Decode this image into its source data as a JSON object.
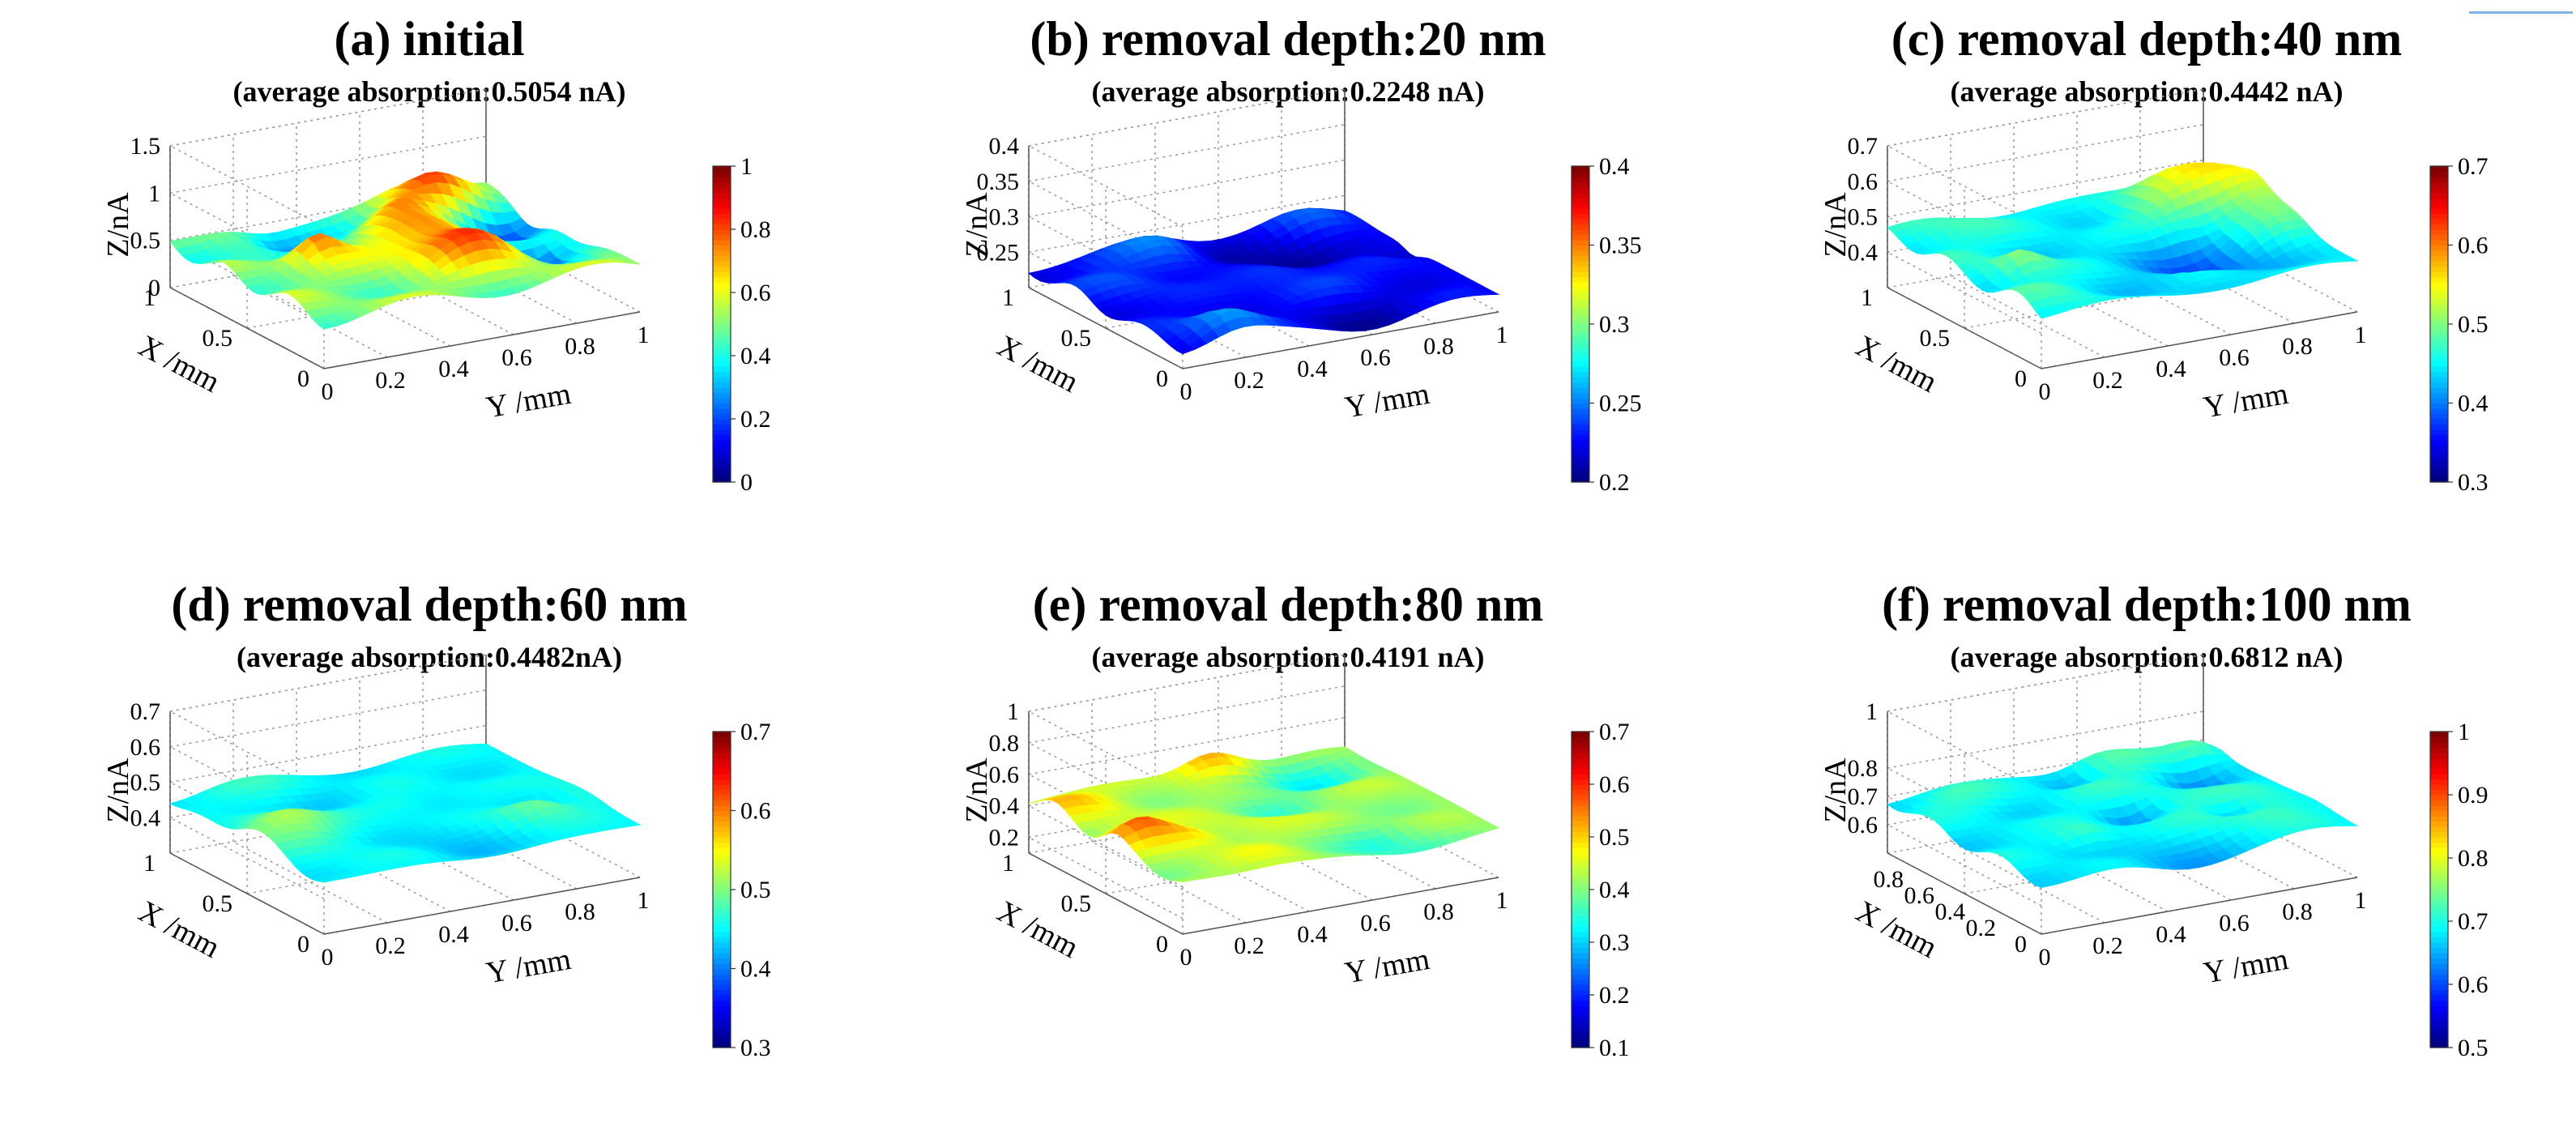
{
  "figure": {
    "accent_color": "#7fb2e6"
  },
  "chart_data": [
    {
      "type": "surface3d",
      "id": "a",
      "title": "(a) initial",
      "subtitle": "(average absorption:0.5054 nA)",
      "xlabel": "X /mm",
      "ylabel": "Y /mm",
      "zlabel": "Z/nA",
      "x_ticks": [
        "0",
        "0.5",
        "1"
      ],
      "y_ticks": [
        "0",
        "0.2",
        "0.4",
        "0.6",
        "0.8",
        "1"
      ],
      "z_ticks": [
        "0",
        "0.5",
        "1",
        "1.5"
      ],
      "zlim": [
        0,
        1.5
      ],
      "colorbar_ticks": [
        "0",
        "0.2",
        "0.4",
        "0.6",
        "0.8",
        "1"
      ],
      "clim": [
        0,
        1
      ],
      "mean": 0.5054,
      "amplitude": 0.35,
      "seed": 11
    },
    {
      "type": "surface3d",
      "id": "b",
      "title": "(b) removal depth:20 nm",
      "subtitle": "(average absorption:0.2248 nA)",
      "xlabel": "X /mm",
      "ylabel": "Y /mm",
      "zlabel": "Z/nA",
      "x_ticks": [
        "0",
        "0.5",
        "1"
      ],
      "y_ticks": [
        "0",
        "0.2",
        "0.4",
        "0.6",
        "0.8",
        "1"
      ],
      "z_ticks": [
        "0.25",
        "0.3",
        "0.35",
        "0.4"
      ],
      "zlim": [
        0.2,
        0.4
      ],
      "colorbar_ticks": [
        "0.2",
        "0.25",
        "0.3",
        "0.35",
        "0.4"
      ],
      "clim": [
        0.2,
        0.4
      ],
      "mean": 0.2248,
      "amplitude": 0.03,
      "seed": 23
    },
    {
      "type": "surface3d",
      "id": "c",
      "title": "(c) removal depth:40 nm",
      "subtitle": "(average absorption:0.4442 nA)",
      "xlabel": "X /mm",
      "ylabel": "Y /mm",
      "zlabel": "Z/nA",
      "x_ticks": [
        "0",
        "0.5",
        "1"
      ],
      "y_ticks": [
        "0",
        "0.2",
        "0.4",
        "0.6",
        "0.8",
        "1"
      ],
      "z_ticks": [
        "0.4",
        "0.5",
        "0.6",
        "0.7"
      ],
      "zlim": [
        0.3,
        0.7
      ],
      "colorbar_ticks": [
        "0.3",
        "0.4",
        "0.5",
        "0.6",
        "0.7"
      ],
      "clim": [
        0.3,
        0.7
      ],
      "mean": 0.4442,
      "amplitude": 0.07,
      "seed": 37
    },
    {
      "type": "surface3d",
      "id": "d",
      "title": "(d) removal depth:60 nm",
      "subtitle": "(average absorption:0.4482nA)",
      "xlabel": "X /mm",
      "ylabel": "Y /mm",
      "zlabel": "Z/nA",
      "x_ticks": [
        "0",
        "0.5",
        "1"
      ],
      "y_ticks": [
        "0",
        "0.2",
        "0.4",
        "0.6",
        "0.8",
        "1"
      ],
      "z_ticks": [
        "0.4",
        "0.5",
        "0.6",
        "0.7"
      ],
      "zlim": [
        0.3,
        0.7
      ],
      "colorbar_ticks": [
        "0.3",
        "0.4",
        "0.5",
        "0.6",
        "0.7"
      ],
      "clim": [
        0.3,
        0.7
      ],
      "mean": 0.4482,
      "amplitude": 0.05,
      "seed": 41
    },
    {
      "type": "surface3d",
      "id": "e",
      "title": "(e) removal depth:80 nm",
      "subtitle": "(average absorption:0.4191 nA)",
      "xlabel": "X /mm",
      "ylabel": "Y /mm",
      "zlabel": "Z/nA",
      "x_ticks": [
        "0",
        "0.5",
        "1"
      ],
      "y_ticks": [
        "0",
        "0.2",
        "0.4",
        "0.6",
        "0.8",
        "1"
      ],
      "z_ticks": [
        "0.2",
        "0.4",
        "0.6",
        "0.8",
        "1"
      ],
      "zlim": [
        0.1,
        1
      ],
      "colorbar_ticks": [
        "0.1",
        "0.2",
        "0.3",
        "0.4",
        "0.5",
        "0.6",
        "0.7"
      ],
      "clim": [
        0.1,
        0.7
      ],
      "mean": 0.4191,
      "amplitude": 0.12,
      "seed": 53
    },
    {
      "type": "surface3d",
      "id": "f",
      "title": "(f) removal depth:100 nm",
      "subtitle": "(average absorption:0.6812 nA)",
      "xlabel": "X /mm",
      "ylabel": "Y /mm",
      "zlabel": "Z/nA",
      "x_ticks": [
        "0",
        "0.2",
        "0.4",
        "0.6",
        "0.8"
      ],
      "y_ticks": [
        "0",
        "0.2",
        "0.4",
        "0.6",
        "0.8",
        "1"
      ],
      "z_ticks": [
        "0.6",
        "0.7",
        "0.8",
        "1"
      ],
      "zlim": [
        0.5,
        1
      ],
      "colorbar_ticks": [
        "0.5",
        "0.6",
        "0.7",
        "0.8",
        "0.9",
        "1"
      ],
      "clim": [
        0.5,
        1
      ],
      "mean": 0.6812,
      "amplitude": 0.08,
      "seed": 67
    }
  ]
}
